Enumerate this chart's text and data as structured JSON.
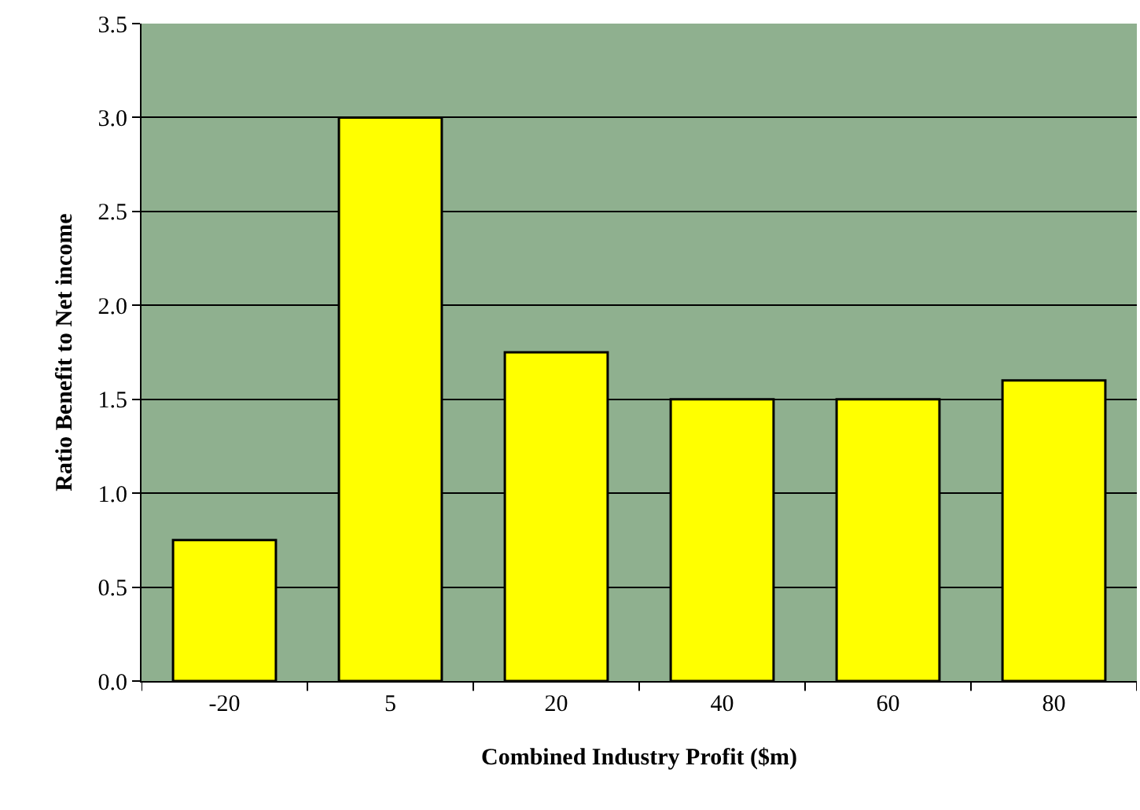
{
  "chart_data": {
    "type": "bar",
    "xlabel": "Combined Industry Profit ($m)",
    "ylabel": "Ratio Benefit to Net income",
    "categories": [
      "-20",
      "5",
      "20",
      "40",
      "60",
      "80"
    ],
    "values": [
      0.75,
      3.0,
      1.75,
      1.5,
      1.5,
      1.6
    ],
    "color": "#ffff00",
    "ylim": [
      0,
      3.5
    ],
    "yticks": [
      {
        "value": 0,
        "label": "0.0"
      },
      0.5,
      {
        "value": 1,
        "label": "1.0"
      },
      1.5,
      {
        "value": 2,
        "label": "2.0"
      },
      2.5,
      {
        "value": 3,
        "label": "3.0"
      },
      3.5
    ],
    "grid": "y",
    "legend": false
  }
}
